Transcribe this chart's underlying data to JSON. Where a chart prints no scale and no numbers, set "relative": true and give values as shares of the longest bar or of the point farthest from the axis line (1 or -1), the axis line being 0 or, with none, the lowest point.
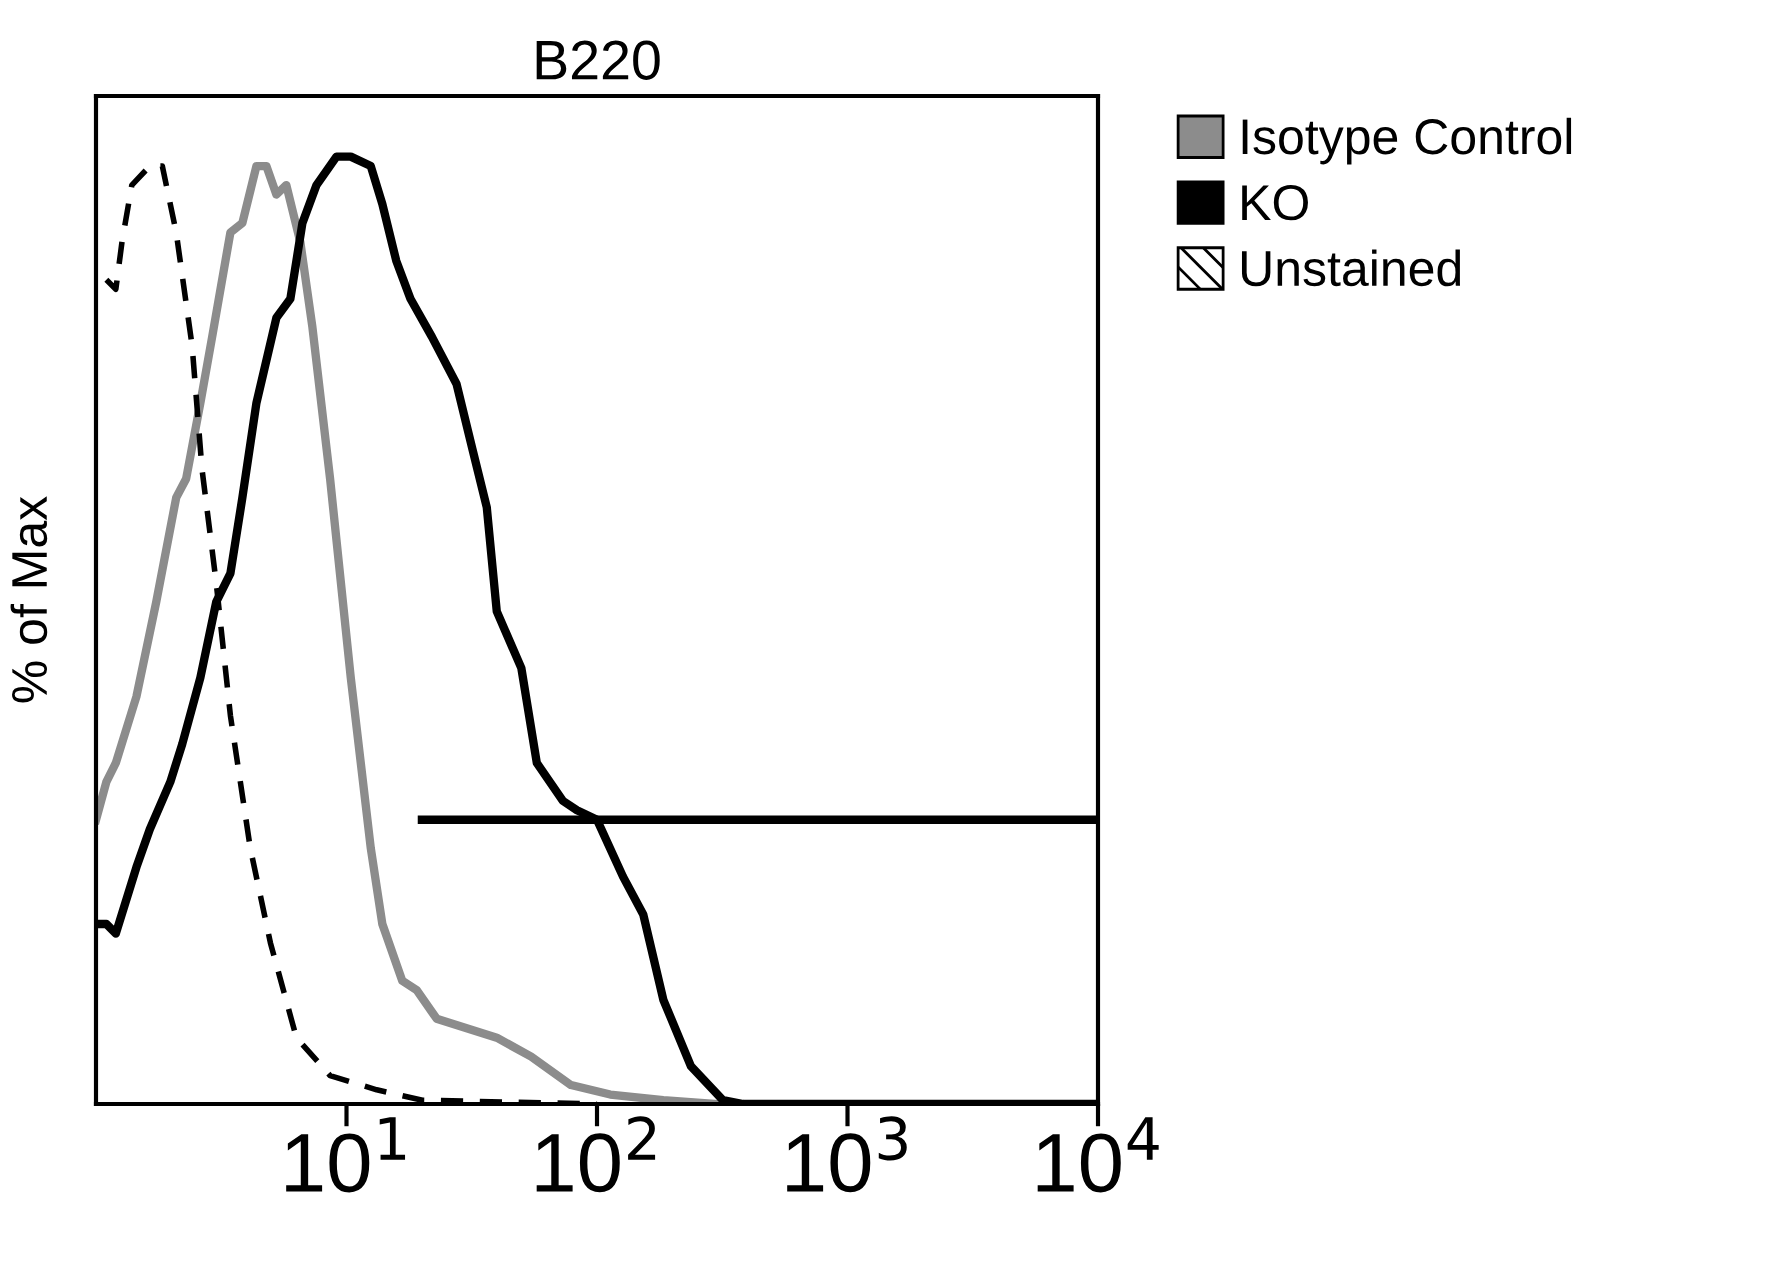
{
  "chart_data": {
    "type": "line",
    "title": "B220",
    "ylabel": "% of Max",
    "relative": true,
    "log": "x",
    "grid": false,
    "legend": "right",
    "xlim": [
      1,
      10000
    ],
    "xticks": [
      {
        "value": 10,
        "label": "10$^{1}$"
      },
      {
        "value": 100,
        "label": "10$^{2}$"
      },
      {
        "value": 1000,
        "label": "10$^{3}$"
      },
      {
        "value": 10000,
        "label": "10$^{4}$"
      }
    ],
    "series": [
      {
        "name": "Isotype Control",
        "color": "#8c8c8c",
        "line_style": "solid",
        "x": [
          1,
          1.1,
          1.2,
          1.45,
          1.74,
          2.09,
          2.29,
          2.61,
          2.91,
          3.44,
          3.84,
          4.37,
          4.79,
          5.25,
          5.75,
          6.54,
          7.31,
          8.6,
          10.4,
          12.5,
          13.9,
          16.7,
          19.1,
          22.9,
          39.8,
          54.6,
          78.7,
          113,
          184,
          302
        ],
        "values": [
          0.3,
          0.34,
          0.36,
          0.43,
          0.53,
          0.64,
          0.66,
          0.74,
          0.81,
          0.92,
          0.93,
          0.99,
          0.99,
          0.96,
          0.97,
          0.91,
          0.82,
          0.66,
          0.45,
          0.27,
          0.19,
          0.13,
          0.12,
          0.09,
          0.07,
          0.05,
          0.02,
          0.01,
          0.004,
          0
        ]
      },
      {
        "name": "KO",
        "color": "#000000",
        "line_style": "solid",
        "x": [
          1,
          1.1,
          1.2,
          1.45,
          1.64,
          1.98,
          2.21,
          2.61,
          3.02,
          3.44,
          3.84,
          4.37,
          5.25,
          5.97,
          6.67,
          7.59,
          9.12,
          10.4,
          12.5,
          13.9,
          15.8,
          18.0,
          21.9,
          27.5,
          31.9,
          36.3,
          39.8,
          49.9,
          57.5,
          73.1,
          83.2,
          100,
          127,
          153,
          184,
          237,
          318,
          383,
          10000
        ],
        "values": [
          0.19,
          0.19,
          0.18,
          0.25,
          0.29,
          0.34,
          0.38,
          0.45,
          0.53,
          0.56,
          0.64,
          0.74,
          0.83,
          0.85,
          0.93,
          0.97,
          1.0,
          1.0,
          0.99,
          0.95,
          0.89,
          0.85,
          0.81,
          0.76,
          0.69,
          0.63,
          0.52,
          0.46,
          0.36,
          0.32,
          0.31,
          0.3,
          0.24,
          0.2,
          0.11,
          0.04,
          0.004,
          0,
          0
        ]
      },
      {
        "name": "Unstained",
        "color": "#000000",
        "line_style": "dashed",
        "x": [
          1.1,
          1.2,
          1.27,
          1.39,
          1.64,
          1.84,
          2.09,
          2.42,
          2.65,
          3.02,
          3.44,
          4.13,
          4.97,
          6.31,
          8.6,
          13.2,
          20.1,
          100
        ],
        "values": [
          0.87,
          0.86,
          0.91,
          0.97,
          0.99,
          0.99,
          0.92,
          0.8,
          0.67,
          0.55,
          0.41,
          0.27,
          0.17,
          0.07,
          0.03,
          0.015,
          0.004,
          0
        ]
      },
      {
        "color": "#000000",
        "line_style": "solid",
        "x": [
          20,
          10000
        ],
        "values": [
          0.3,
          0.3
        ]
      }
    ]
  }
}
